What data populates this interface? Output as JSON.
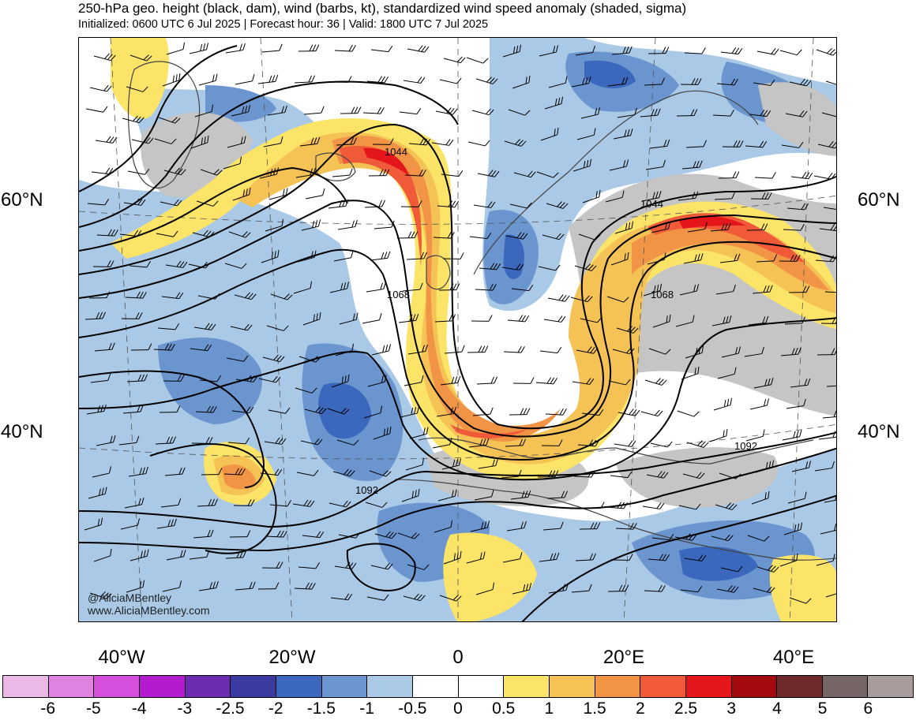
{
  "header": {
    "title": "250-hPa geo. height (black, dam), wind (barbs, kt), standardized wind speed anomaly (shaded, sigma)",
    "subtitle": "Initialized: 0600 UTC 6 Jul 2025 | Forecast hour: 36 | Valid: 1800 UTC 7 Jul 2025"
  },
  "axes": {
    "lat_labels": [
      "60°N",
      "40°N"
    ],
    "lon_labels": [
      "40°W",
      "20°W",
      "0",
      "20°E",
      "40°E"
    ]
  },
  "contour_labels": [
    "1044",
    "1044",
    "1068",
    "1068",
    "1092",
    "1092"
  ],
  "credit": {
    "handle": "@AliciaMBentley",
    "website": "www.AliciaMBentley.com"
  },
  "colorbar": {
    "colors": [
      "#ecb8e6",
      "#e083e0",
      "#d64fdc",
      "#b31bcf",
      "#6c2bb1",
      "#3b3aa0",
      "#3b67bd",
      "#6a95cf",
      "#a9c9e6",
      "#ffffff",
      "#ffffff",
      "#fbe468",
      "#f5c255",
      "#f29445",
      "#f05a38",
      "#e4161b",
      "#a30a0d",
      "#6e2a2a",
      "#756566",
      "#a89c9c"
    ],
    "labels": [
      "-6",
      "-5",
      "-4",
      "-3",
      "-2.5",
      "-2",
      "-1.5",
      "-1",
      "-0.5",
      "0",
      "0.5",
      "1",
      "1.5",
      "2",
      "2.5",
      "3",
      "4",
      "5",
      "6"
    ]
  },
  "shading": {
    "gray": "#c5c5c5",
    "light_blue": "#a9c9e6",
    "mid_blue": "#6a95cf",
    "dark_blue": "#3b67bd",
    "yellow": "#fbe468",
    "light_orange": "#f5c255",
    "orange": "#f29445",
    "red_orange": "#f05a38",
    "red": "#e4161b"
  }
}
